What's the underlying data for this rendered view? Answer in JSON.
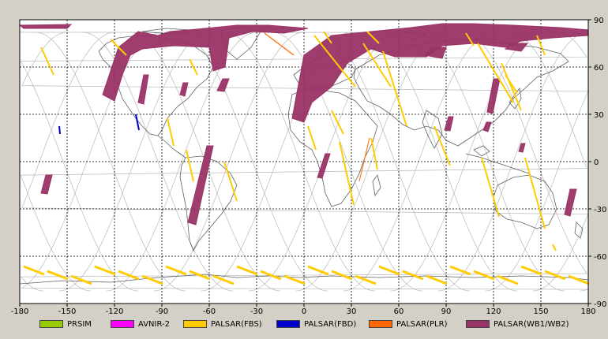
{
  "map": {
    "lon_ticks": [
      "-180",
      "-150",
      "-120",
      "-90",
      "-60",
      "-30",
      "0",
      "30",
      "60",
      "90",
      "120",
      "150",
      "180"
    ],
    "lat_ticks": [
      "90",
      "60",
      "30",
      "0",
      "-30",
      "-60",
      "-90"
    ],
    "lon_range": [
      -180,
      180
    ],
    "lat_range": [
      -90,
      90
    ],
    "grid": "dashed",
    "background": "#ffffff",
    "coastline_color": "#606060",
    "orbit_color": "#b8b8b8"
  },
  "legend": [
    {
      "label": "PRSIM",
      "color": "#99cc00"
    },
    {
      "label": "AVNIR-2",
      "color": "#ff00ff"
    },
    {
      "label": "PALSAR(FBS)",
      "color": "#ffcc00"
    },
    {
      "label": "PALSAR(FBD)",
      "color": "#0000cc"
    },
    {
      "label": "PALSAR(PLR)",
      "color": "#ff6600"
    },
    {
      "label": "PALSAR(WB1/WB2)",
      "color": "#993366"
    }
  ]
}
